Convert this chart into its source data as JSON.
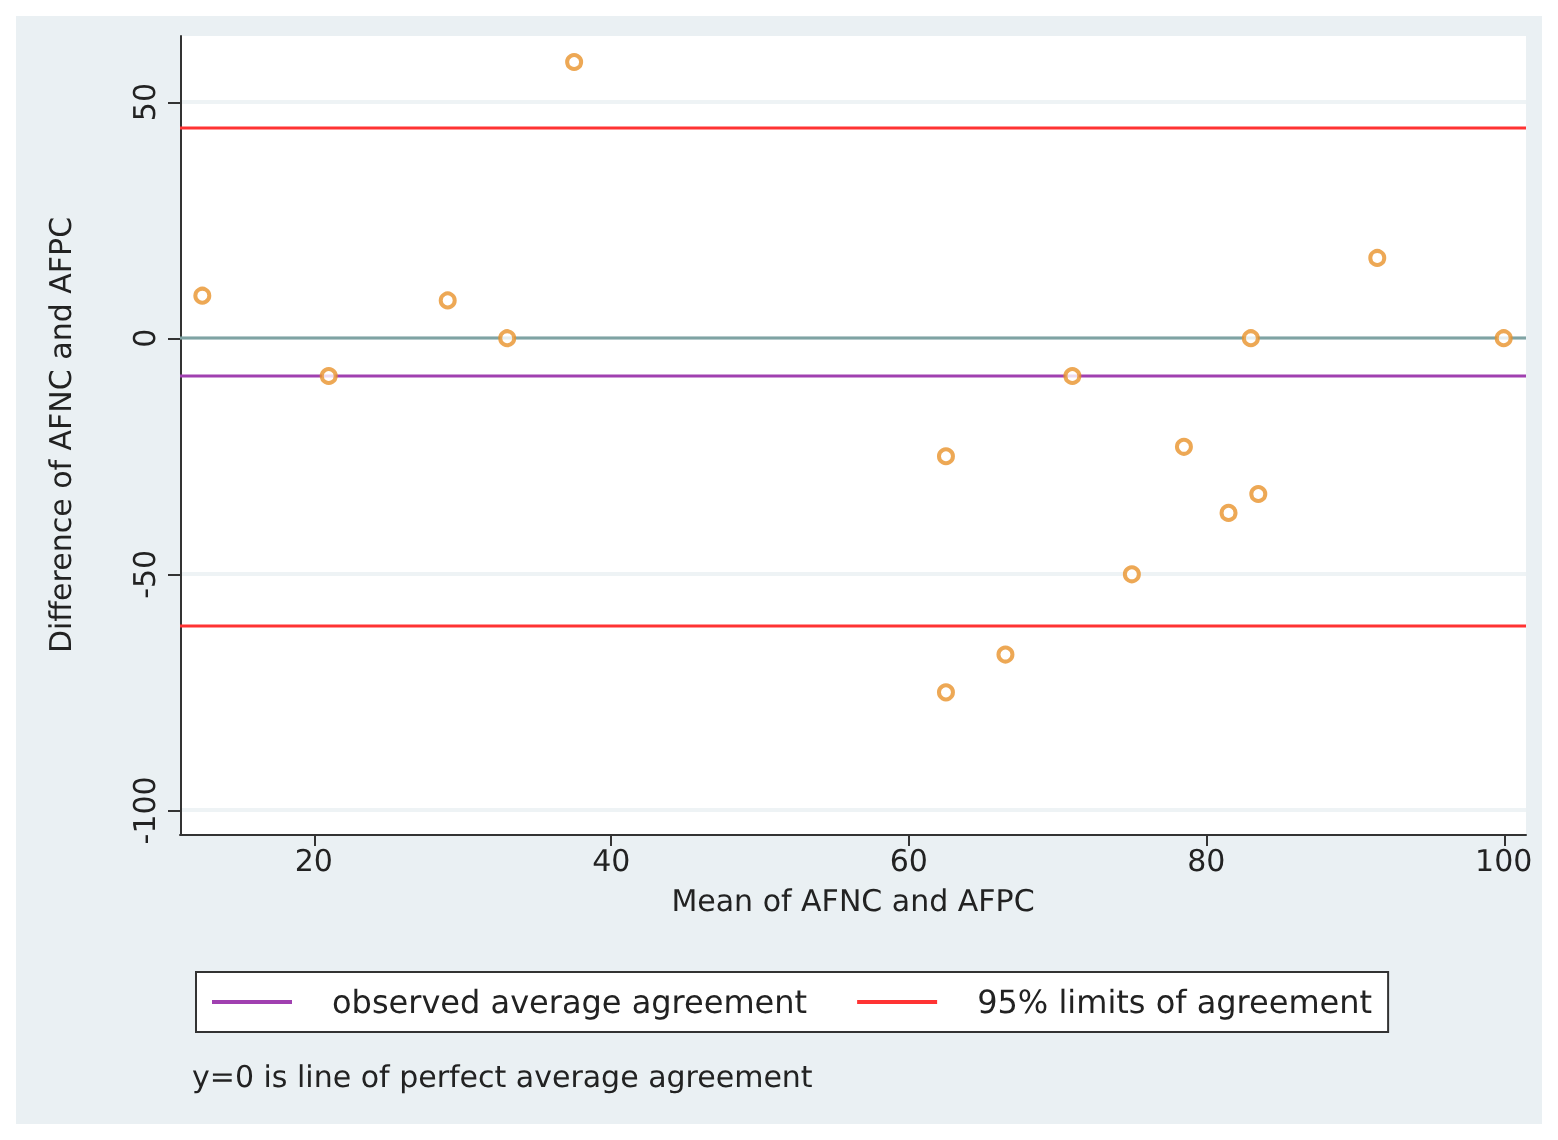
{
  "chart_data": {
    "type": "scatter",
    "xlabel": "Mean of AFNC and AFPC",
    "ylabel": "Difference of AFNC and AFPC",
    "x": [
      12.5,
      21,
      29,
      33,
      37.5,
      62.5,
      62.5,
      66.5,
      71,
      75,
      78.5,
      81.5,
      83.5,
      83,
      91.5,
      100
    ],
    "series": [
      {
        "color": "#e8922a",
        "values": [
          9,
          -8,
          8,
          0,
          58.5,
          -25,
          -75,
          -67,
          -8,
          -50,
          -23,
          -37,
          -33,
          0,
          17,
          0
        ]
      }
    ],
    "xlim": [
      11,
      101.5
    ],
    "xticks": [
      20,
      40,
      60,
      80,
      100
    ],
    "ylim": [
      -105,
      64
    ],
    "yticks": [
      -100,
      -50,
      0,
      50
    ],
    "ref_lines": [
      {
        "axis": "y",
        "value": 0,
        "label": null,
        "color": "#7fa3a3"
      },
      {
        "axis": "y",
        "value": -8,
        "label": "observed average agreement",
        "color": "#a040b0"
      },
      {
        "axis": "y",
        "value": 44.5,
        "label": "95% limits of agreement",
        "color": "#ff3333"
      },
      {
        "axis": "y",
        "value": -60.8,
        "label": null,
        "color": "#ff3333"
      }
    ],
    "annotations": [
      "y=0 is line of perfect average agreement"
    ],
    "grid": "y",
    "legend": "bottom",
    "marker": "circle"
  }
}
